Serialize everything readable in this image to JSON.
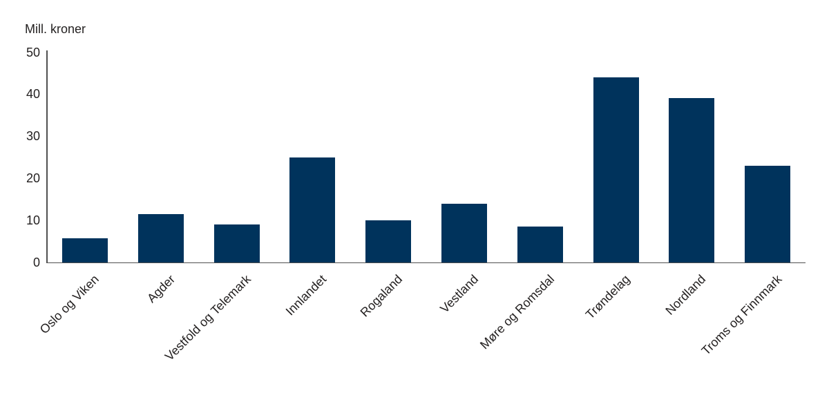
{
  "chart_data": {
    "type": "bar",
    "title": "",
    "unit_label": "Mill. kroner",
    "categories": [
      "Oslo og Viken",
      "Agder",
      "Vestfold og Telemark",
      "Innlandet",
      "Rogaland",
      "Vestland",
      "Møre og Romsdal",
      "Trøndelag",
      "Nordland",
      "Troms og Finnmark"
    ],
    "values": [
      5.7,
      11.5,
      9,
      25,
      10,
      14,
      8.5,
      44,
      39,
      23
    ],
    "xlabel": "",
    "ylabel": "Mill. kroner",
    "ylim": [
      0,
      50
    ],
    "yticks": [
      0,
      10,
      20,
      30,
      40,
      50
    ],
    "grid": "off",
    "legend": "none",
    "colors": {
      "bar": "#00335c",
      "axis": "#4f4f4f",
      "text": "#221f1f",
      "background": "#ffffff"
    }
  }
}
